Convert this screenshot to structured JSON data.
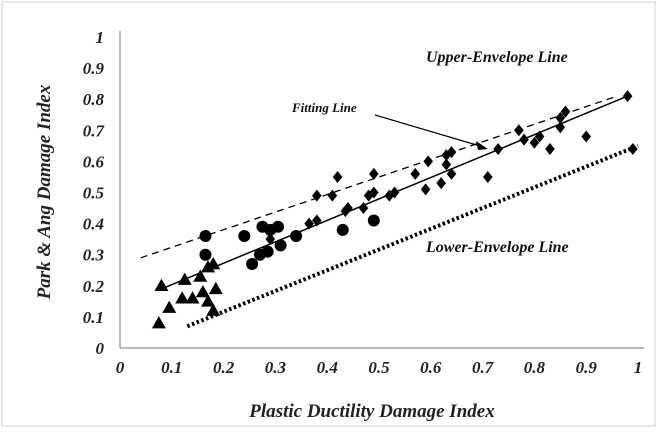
{
  "chart_data": {
    "type": "scatter",
    "title": "",
    "xlabel": "Plastic Ductility Damage Index",
    "ylabel": "Park & Ang Damage Index",
    "xlim": [
      0,
      1
    ],
    "ylim": [
      0,
      1
    ],
    "x_ticks": [
      "0",
      "0.1",
      "0.2",
      "0.3",
      "0.4",
      "0.5",
      "0.6",
      "0.7",
      "0.8",
      "0.9",
      "1"
    ],
    "y_ticks": [
      "0",
      "0.1",
      "0.2",
      "0.3",
      "0.4",
      "0.5",
      "0.6",
      "0.7",
      "0.8",
      "0.9",
      "1"
    ],
    "grid": false,
    "series": [
      {
        "marker": "triangle",
        "color": "#000000",
        "points": [
          [
            0.075,
            0.08
          ],
          [
            0.08,
            0.2
          ],
          [
            0.095,
            0.13
          ],
          [
            0.12,
            0.16
          ],
          [
            0.125,
            0.22
          ],
          [
            0.14,
            0.16
          ],
          [
            0.155,
            0.23
          ],
          [
            0.16,
            0.18
          ],
          [
            0.17,
            0.15
          ],
          [
            0.17,
            0.26
          ],
          [
            0.18,
            0.27
          ],
          [
            0.18,
            0.12
          ],
          [
            0.185,
            0.19
          ]
        ]
      },
      {
        "marker": "circle",
        "color": "#000000",
        "points": [
          [
            0.165,
            0.36
          ],
          [
            0.165,
            0.3
          ],
          [
            0.24,
            0.36
          ],
          [
            0.255,
            0.27
          ],
          [
            0.27,
            0.3
          ],
          [
            0.275,
            0.39
          ],
          [
            0.285,
            0.31
          ],
          [
            0.29,
            0.38
          ],
          [
            0.305,
            0.39
          ],
          [
            0.31,
            0.33
          ],
          [
            0.34,
            0.36
          ],
          [
            0.43,
            0.38
          ],
          [
            0.49,
            0.41
          ]
        ]
      },
      {
        "marker": "diamond",
        "color": "#000000",
        "points": [
          [
            0.29,
            0.35
          ],
          [
            0.365,
            0.4
          ],
          [
            0.38,
            0.41
          ],
          [
            0.38,
            0.49
          ],
          [
            0.41,
            0.49
          ],
          [
            0.42,
            0.55
          ],
          [
            0.435,
            0.44
          ],
          [
            0.44,
            0.45
          ],
          [
            0.47,
            0.45
          ],
          [
            0.48,
            0.49
          ],
          [
            0.49,
            0.5
          ],
          [
            0.49,
            0.56
          ],
          [
            0.52,
            0.49
          ],
          [
            0.53,
            0.5
          ],
          [
            0.57,
            0.56
          ],
          [
            0.59,
            0.51
          ],
          [
            0.595,
            0.6
          ],
          [
            0.62,
            0.53
          ],
          [
            0.63,
            0.59
          ],
          [
            0.63,
            0.62
          ],
          [
            0.64,
            0.63
          ],
          [
            0.64,
            0.56
          ],
          [
            0.71,
            0.55
          ],
          [
            0.73,
            0.64
          ],
          [
            0.77,
            0.7
          ],
          [
            0.78,
            0.67
          ],
          [
            0.8,
            0.66
          ],
          [
            0.81,
            0.68
          ],
          [
            0.83,
            0.64
          ],
          [
            0.85,
            0.71
          ],
          [
            0.85,
            0.74
          ],
          [
            0.86,
            0.76
          ],
          [
            0.9,
            0.68
          ],
          [
            0.98,
            0.81
          ],
          [
            0.99,
            0.64
          ]
        ]
      }
    ],
    "lines": [
      {
        "name": "Fitting Line",
        "style": "solid",
        "x": [
          0.08,
          0.98
        ],
        "y": [
          0.19,
          0.81
        ]
      },
      {
        "name": "Upper-Envelope Line",
        "style": "dashed",
        "x": [
          0.04,
          0.96
        ],
        "y": [
          0.29,
          0.81
        ]
      },
      {
        "name": "Lower-Envelope Line",
        "style": "dotted",
        "x": [
          0.13,
          1.0
        ],
        "y": [
          0.07,
          0.65
        ]
      }
    ],
    "annotations": {
      "upper": "Upper-Envelope Line",
      "fitting": "Fitting Line",
      "lower": "Lower-Envelope Line"
    }
  }
}
